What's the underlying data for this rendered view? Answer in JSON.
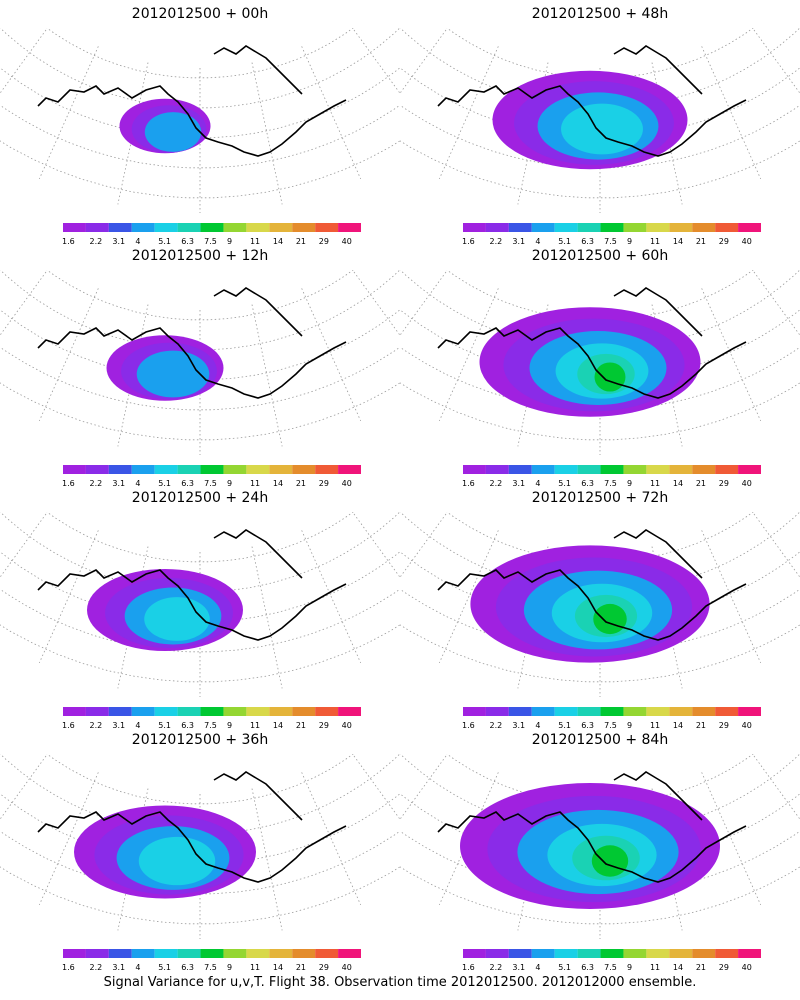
{
  "colors": [
    "#a021e0",
    "#8a2be8",
    "#3a55e6",
    "#1aa0ee",
    "#1ad0e6",
    "#1ad2b4",
    "#00c832",
    "#94d632",
    "#d8d84a",
    "#e4b43a",
    "#e48c2c",
    "#f05a36",
    "#f0147a"
  ],
  "colorbar_labels": [
    "1.6",
    "2.2",
    "3.1",
    "4",
    "5.1",
    "6.3",
    "7.5",
    "9",
    "11",
    "14",
    "21",
    "29",
    "40"
  ],
  "chart_data": [
    {
      "type": "heatmap",
      "title": "2012012500 + 00h",
      "lead_hours": 0,
      "colorbar_labels": [
        "1.6",
        "2.2",
        "3.1",
        "4",
        "5.1",
        "6.3",
        "7.5",
        "9",
        "11",
        "14",
        "21",
        "29",
        "40"
      ]
    },
    {
      "type": "heatmap",
      "title": "2012012500 + 12h",
      "lead_hours": 12,
      "colorbar_labels": [
        "1.6",
        "2.2",
        "3.1",
        "4",
        "5.1",
        "6.3",
        "7.5",
        "9",
        "11",
        "14",
        "21",
        "29",
        "40"
      ]
    },
    {
      "type": "heatmap",
      "title": "2012012500 + 24h",
      "lead_hours": 24,
      "colorbar_labels": [
        "1.6",
        "2.2",
        "3.1",
        "4",
        "5.1",
        "6.3",
        "7.5",
        "9",
        "11",
        "14",
        "21",
        "29",
        "40"
      ]
    },
    {
      "type": "heatmap",
      "title": "2012012500 + 36h",
      "lead_hours": 36,
      "colorbar_labels": [
        "1.6",
        "2.2",
        "3.1",
        "4",
        "5.1",
        "6.3",
        "7.5",
        "9",
        "11",
        "14",
        "21",
        "29",
        "40"
      ]
    },
    {
      "type": "heatmap",
      "title": "2012012500 + 48h",
      "lead_hours": 48,
      "colorbar_labels": [
        "1.6",
        "2.2",
        "3.1",
        "4",
        "5.1",
        "6.3",
        "7.5",
        "9",
        "11",
        "14",
        "21",
        "29",
        "40"
      ]
    },
    {
      "type": "heatmap",
      "title": "2012012500 + 60h",
      "lead_hours": 60,
      "colorbar_labels": [
        "1.6",
        "2.2",
        "3.1",
        "4",
        "5.1",
        "6.3",
        "7.5",
        "9",
        "11",
        "14",
        "21",
        "29",
        "40"
      ]
    },
    {
      "type": "heatmap",
      "title": "2012012500 + 72h",
      "lead_hours": 72,
      "colorbar_labels": [
        "1.6",
        "2.2",
        "3.1",
        "4",
        "5.1",
        "6.3",
        "7.5",
        "9",
        "11",
        "14",
        "21",
        "29",
        "40"
      ]
    },
    {
      "type": "heatmap",
      "title": "2012012500 + 84h",
      "lead_hours": 84,
      "colorbar_labels": [
        "1.6",
        "2.2",
        "3.1",
        "4",
        "5.1",
        "6.3",
        "7.5",
        "9",
        "11",
        "14",
        "21",
        "29",
        "40"
      ]
    }
  ],
  "footer": "Signal Variance for u,v,T. Flight 38. Observation time 2012012500. 2012012000 ensemble."
}
